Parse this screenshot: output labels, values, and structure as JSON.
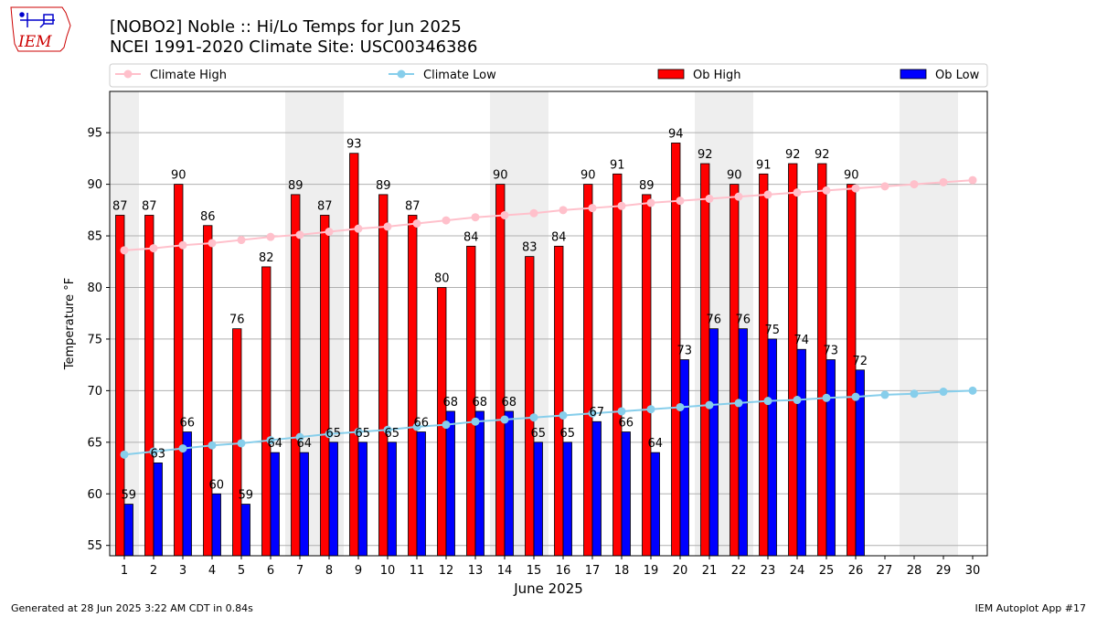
{
  "header": {
    "title_line1": "[NOBO2] Noble :: Hi/Lo Temps for Jun 2025",
    "title_line2": "NCEI 1991-2020 Climate Site: USC00346386"
  },
  "logo": {
    "text": "IEM",
    "colors": {
      "text": "#cc0000",
      "outline": "#cc0000",
      "icon": "#0000cc"
    }
  },
  "footer": {
    "generated": "Generated at 28 Jun 2025 3:22 AM CDT in 0.84s",
    "app": "IEM Autoplot App #17"
  },
  "chart_data": {
    "type": "bar",
    "xlabel": "June 2025",
    "ylabel": "Temperature °F",
    "ylim": [
      54,
      99
    ],
    "yticks": [
      55,
      60,
      65,
      70,
      75,
      80,
      85,
      90,
      95
    ],
    "grid": "horizontal",
    "legend_position": "top",
    "weekend_shading_color": "#eeeeee",
    "weekend_bands": [
      [
        1,
        1
      ],
      [
        7,
        8
      ],
      [
        14,
        15
      ],
      [
        21,
        22
      ],
      [
        28,
        29
      ]
    ],
    "categories": [
      "1",
      "2",
      "3",
      "4",
      "5",
      "6",
      "7",
      "8",
      "9",
      "10",
      "11",
      "12",
      "13",
      "14",
      "15",
      "16",
      "17",
      "18",
      "19",
      "20",
      "21",
      "22",
      "23",
      "24",
      "25",
      "26",
      "27",
      "28",
      "29",
      "30"
    ],
    "series": [
      {
        "name": "Climate High",
        "kind": "line",
        "color": "#ffc0cb",
        "values": [
          83.6,
          83.8,
          84.1,
          84.3,
          84.6,
          84.9,
          85.1,
          85.4,
          85.7,
          85.9,
          86.2,
          86.5,
          86.8,
          87.0,
          87.2,
          87.5,
          87.7,
          87.9,
          88.2,
          88.4,
          88.6,
          88.8,
          89.0,
          89.2,
          89.4,
          89.6,
          89.8,
          90.0,
          90.2,
          90.4
        ]
      },
      {
        "name": "Climate Low",
        "kind": "line",
        "color": "#87ceeb",
        "values": [
          63.8,
          64.1,
          64.4,
          64.7,
          64.9,
          65.2,
          65.5,
          65.8,
          66.0,
          66.2,
          66.5,
          66.7,
          67.0,
          67.2,
          67.4,
          67.6,
          67.8,
          68.0,
          68.2,
          68.4,
          68.6,
          68.8,
          69.0,
          69.1,
          69.3,
          69.4,
          69.6,
          69.7,
          69.9,
          70.0
        ]
      },
      {
        "name": "Ob High",
        "kind": "bar",
        "color": "#ff0000",
        "values": [
          87,
          87,
          90,
          86,
          76,
          82,
          89,
          87,
          93,
          89,
          87,
          80,
          84,
          90,
          83,
          84,
          90,
          91,
          89,
          94,
          92,
          90,
          91,
          92,
          92,
          90,
          null,
          null,
          null,
          null
        ]
      },
      {
        "name": "Ob Low",
        "kind": "bar",
        "color": "#0000ff",
        "values": [
          59,
          63,
          66,
          60,
          59,
          64,
          64,
          65,
          65,
          65,
          66,
          68,
          68,
          68,
          65,
          65,
          67,
          66,
          64,
          73,
          76,
          76,
          75,
          74,
          73,
          72,
          null,
          null,
          null,
          null
        ]
      }
    ]
  }
}
